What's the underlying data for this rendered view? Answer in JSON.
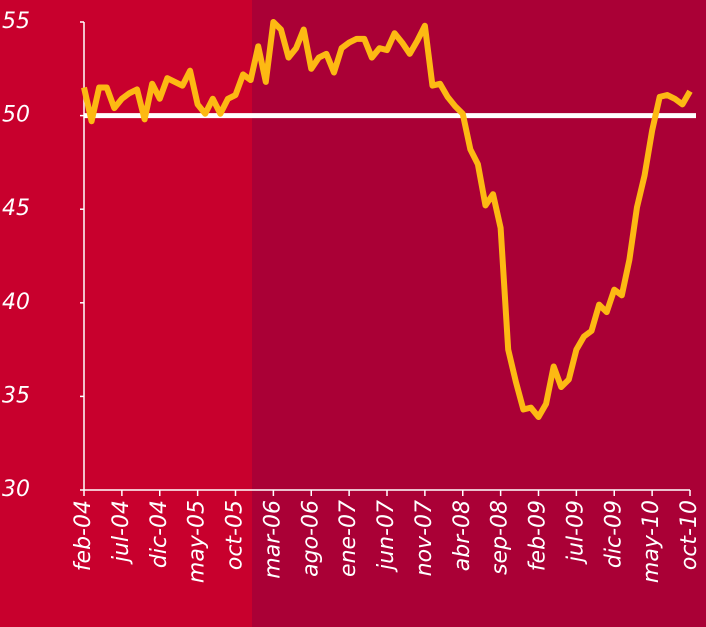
{
  "chart_data": {
    "type": "line",
    "categories": [
      "feb-04",
      null,
      null,
      null,
      null,
      "jul-04",
      null,
      null,
      null,
      null,
      "dic-04",
      null,
      null,
      null,
      null,
      "may-05",
      null,
      null,
      null,
      null,
      "oct-05",
      null,
      null,
      null,
      null,
      "mar-06",
      null,
      null,
      null,
      null,
      "ago-06",
      null,
      null,
      null,
      null,
      "ene-07",
      null,
      null,
      null,
      null,
      "jun-07",
      null,
      null,
      null,
      null,
      "nov-07",
      null,
      null,
      null,
      null,
      "abr-08",
      null,
      null,
      null,
      null,
      "sep-08",
      null,
      null,
      null,
      null,
      "feb-09",
      null,
      null,
      null,
      null,
      "jul-09",
      null,
      null,
      null,
      null,
      "dic-09",
      null,
      null,
      null,
      null,
      "may-10",
      null,
      null,
      null,
      null,
      "oct-10"
    ],
    "values": [
      51.5,
      49.7,
      51.5,
      51.5,
      50.4,
      50.9,
      51.2,
      51.4,
      49.8,
      51.7,
      50.9,
      52.0,
      51.8,
      51.6,
      52.4,
      50.6,
      50.1,
      50.9,
      50.1,
      50.9,
      51.1,
      52.2,
      51.9,
      53.7,
      51.8,
      55.0,
      54.6,
      53.1,
      53.6,
      54.6,
      52.5,
      53.1,
      53.3,
      52.3,
      53.6,
      53.9,
      54.1,
      54.1,
      53.1,
      53.6,
      53.5,
      54.4,
      53.9,
      53.3,
      54.0,
      54.8,
      51.6,
      51.7,
      51.0,
      50.5,
      50.1,
      48.2,
      47.4,
      45.2,
      45.8,
      44.0,
      37.5,
      35.8,
      34.3,
      34.4,
      33.9,
      34.6,
      36.6,
      35.5,
      35.9,
      37.5,
      38.2,
      38.5,
      39.9,
      39.5,
      40.7,
      40.4,
      42.3,
      45.1,
      46.8,
      49.2,
      51.0,
      51.1,
      50.9,
      50.6,
      51.3
    ],
    "color": "#fdb913",
    "reference_line": 50,
    "reference_color": "#ffffff",
    "ylim": [
      30,
      55
    ],
    "yticks": [
      30,
      35,
      40,
      45,
      50,
      55
    ]
  }
}
